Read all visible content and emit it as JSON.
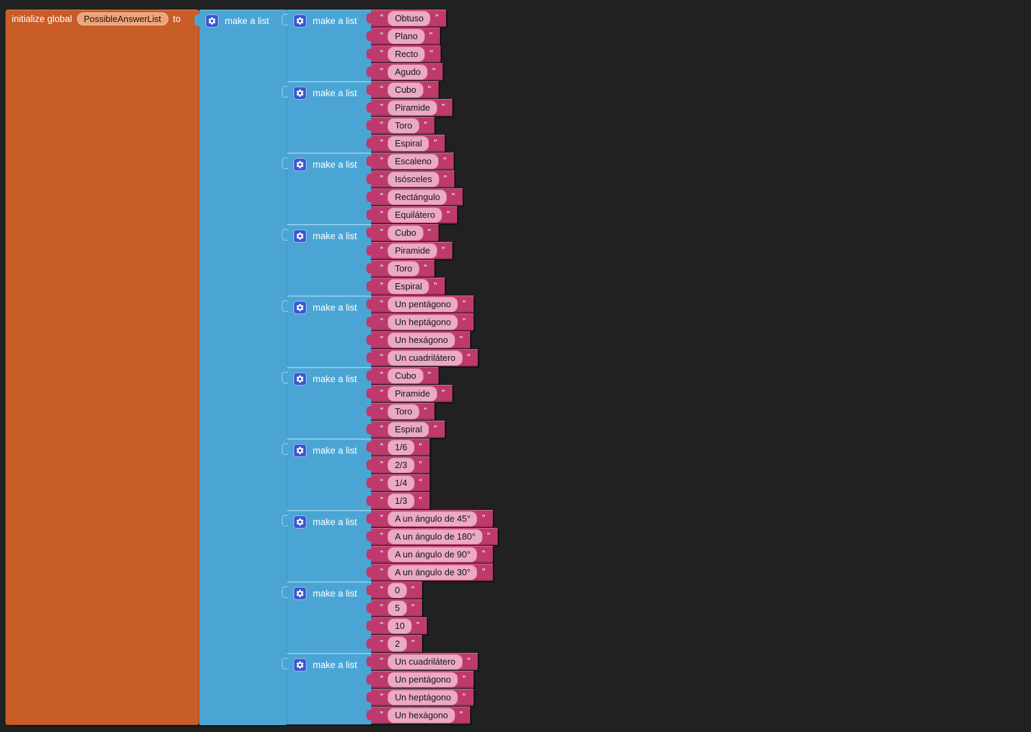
{
  "colors": {
    "background": "#212121",
    "variable_block": "#c95d27",
    "variable_field_bg": "#eda47d",
    "variable_field_border": "#f3c3a2",
    "list_block": "#4aa5d5",
    "list_separator": "#9bd4ee",
    "gear_badge": "#3a57d0",
    "text_block": "#bf3a6c",
    "text_field_bg": "#ebaac4",
    "text_field_border": "#e293b4"
  },
  "init_block": {
    "label_initialize": "initialize global",
    "variable_name": "PossibleAnswerList",
    "label_to": "to"
  },
  "outer_list": {
    "label": "make a list",
    "icon": "gear-icon"
  },
  "quote_mark": "\"",
  "lists": [
    {
      "label": "make a list",
      "icon": "gear-icon",
      "items": [
        "Obtuso",
        "Plano",
        "Recto",
        "Agudo"
      ]
    },
    {
      "label": "make a list",
      "icon": "gear-icon",
      "items": [
        "Cubo",
        "Piramide",
        "Toro",
        "Espiral"
      ]
    },
    {
      "label": "make a list",
      "icon": "gear-icon",
      "items": [
        "Escaleno",
        "Isósceles",
        "Rectángulo",
        "Equilátero"
      ]
    },
    {
      "label": "make a list",
      "icon": "gear-icon",
      "items": [
        "Cubo",
        "Piramide",
        "Toro",
        "Espiral"
      ]
    },
    {
      "label": "make a list",
      "icon": "gear-icon",
      "items": [
        "Un pentágono",
        "Un heptágono",
        "Un hexágono",
        "Un cuadrilátero"
      ]
    },
    {
      "label": "make a list",
      "icon": "gear-icon",
      "items": [
        "Cubo",
        "Piramide",
        "Toro",
        "Espiral"
      ]
    },
    {
      "label": "make a list",
      "icon": "gear-icon",
      "items": [
        "1/6",
        "2/3",
        "1/4",
        "1/3"
      ]
    },
    {
      "label": "make a list",
      "icon": "gear-icon",
      "items": [
        "A un ángulo de 45°",
        "A un ángulo de 180°",
        "A un ángulo de 90°",
        "A un ángulo de 30°"
      ]
    },
    {
      "label": "make a list",
      "icon": "gear-icon",
      "items": [
        "0",
        "5",
        "10",
        "2"
      ]
    },
    {
      "label": "make a list",
      "icon": "gear-icon",
      "items": [
        "Un cuadrilátero",
        "Un pentágono",
        "Un heptágono",
        "Un hexágono"
      ]
    }
  ]
}
